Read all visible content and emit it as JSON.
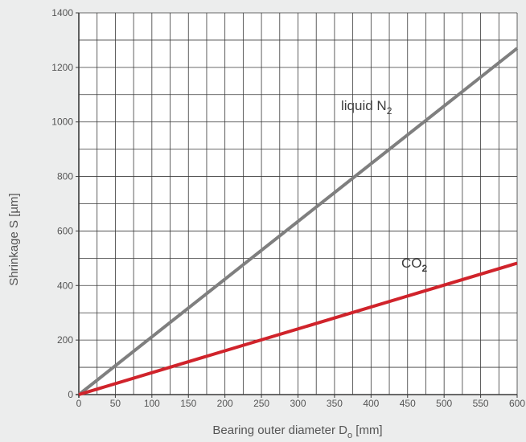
{
  "chart_data": {
    "type": "line",
    "title": "",
    "xlabel": {
      "text": "Bearing outer diameter D",
      "subscript": "o",
      "suffix": " [mm]"
    },
    "ylabel": "Shrinkage S [µm]",
    "xlim": [
      0,
      600
    ],
    "ylim": [
      0,
      1400
    ],
    "x_ticks": [
      "0",
      "50",
      "100",
      "150",
      "200",
      "250",
      "300",
      "350",
      "400",
      "450",
      "500",
      "550",
      "600"
    ],
    "y_ticks": [
      "0",
      "200",
      "400",
      "600",
      "800",
      "1000",
      "1200",
      "1400"
    ],
    "grid": true,
    "series": [
      {
        "name": "liquid N",
        "name_subscript": "2",
        "color": "#7f7f7f",
        "x": [
          0,
          600
        ],
        "y": [
          0,
          1270
        ]
      },
      {
        "name": "CO",
        "name_subscript": "2",
        "color": "#d0232b",
        "x": [
          0,
          600
        ],
        "y": [
          0,
          482
        ]
      }
    ]
  }
}
